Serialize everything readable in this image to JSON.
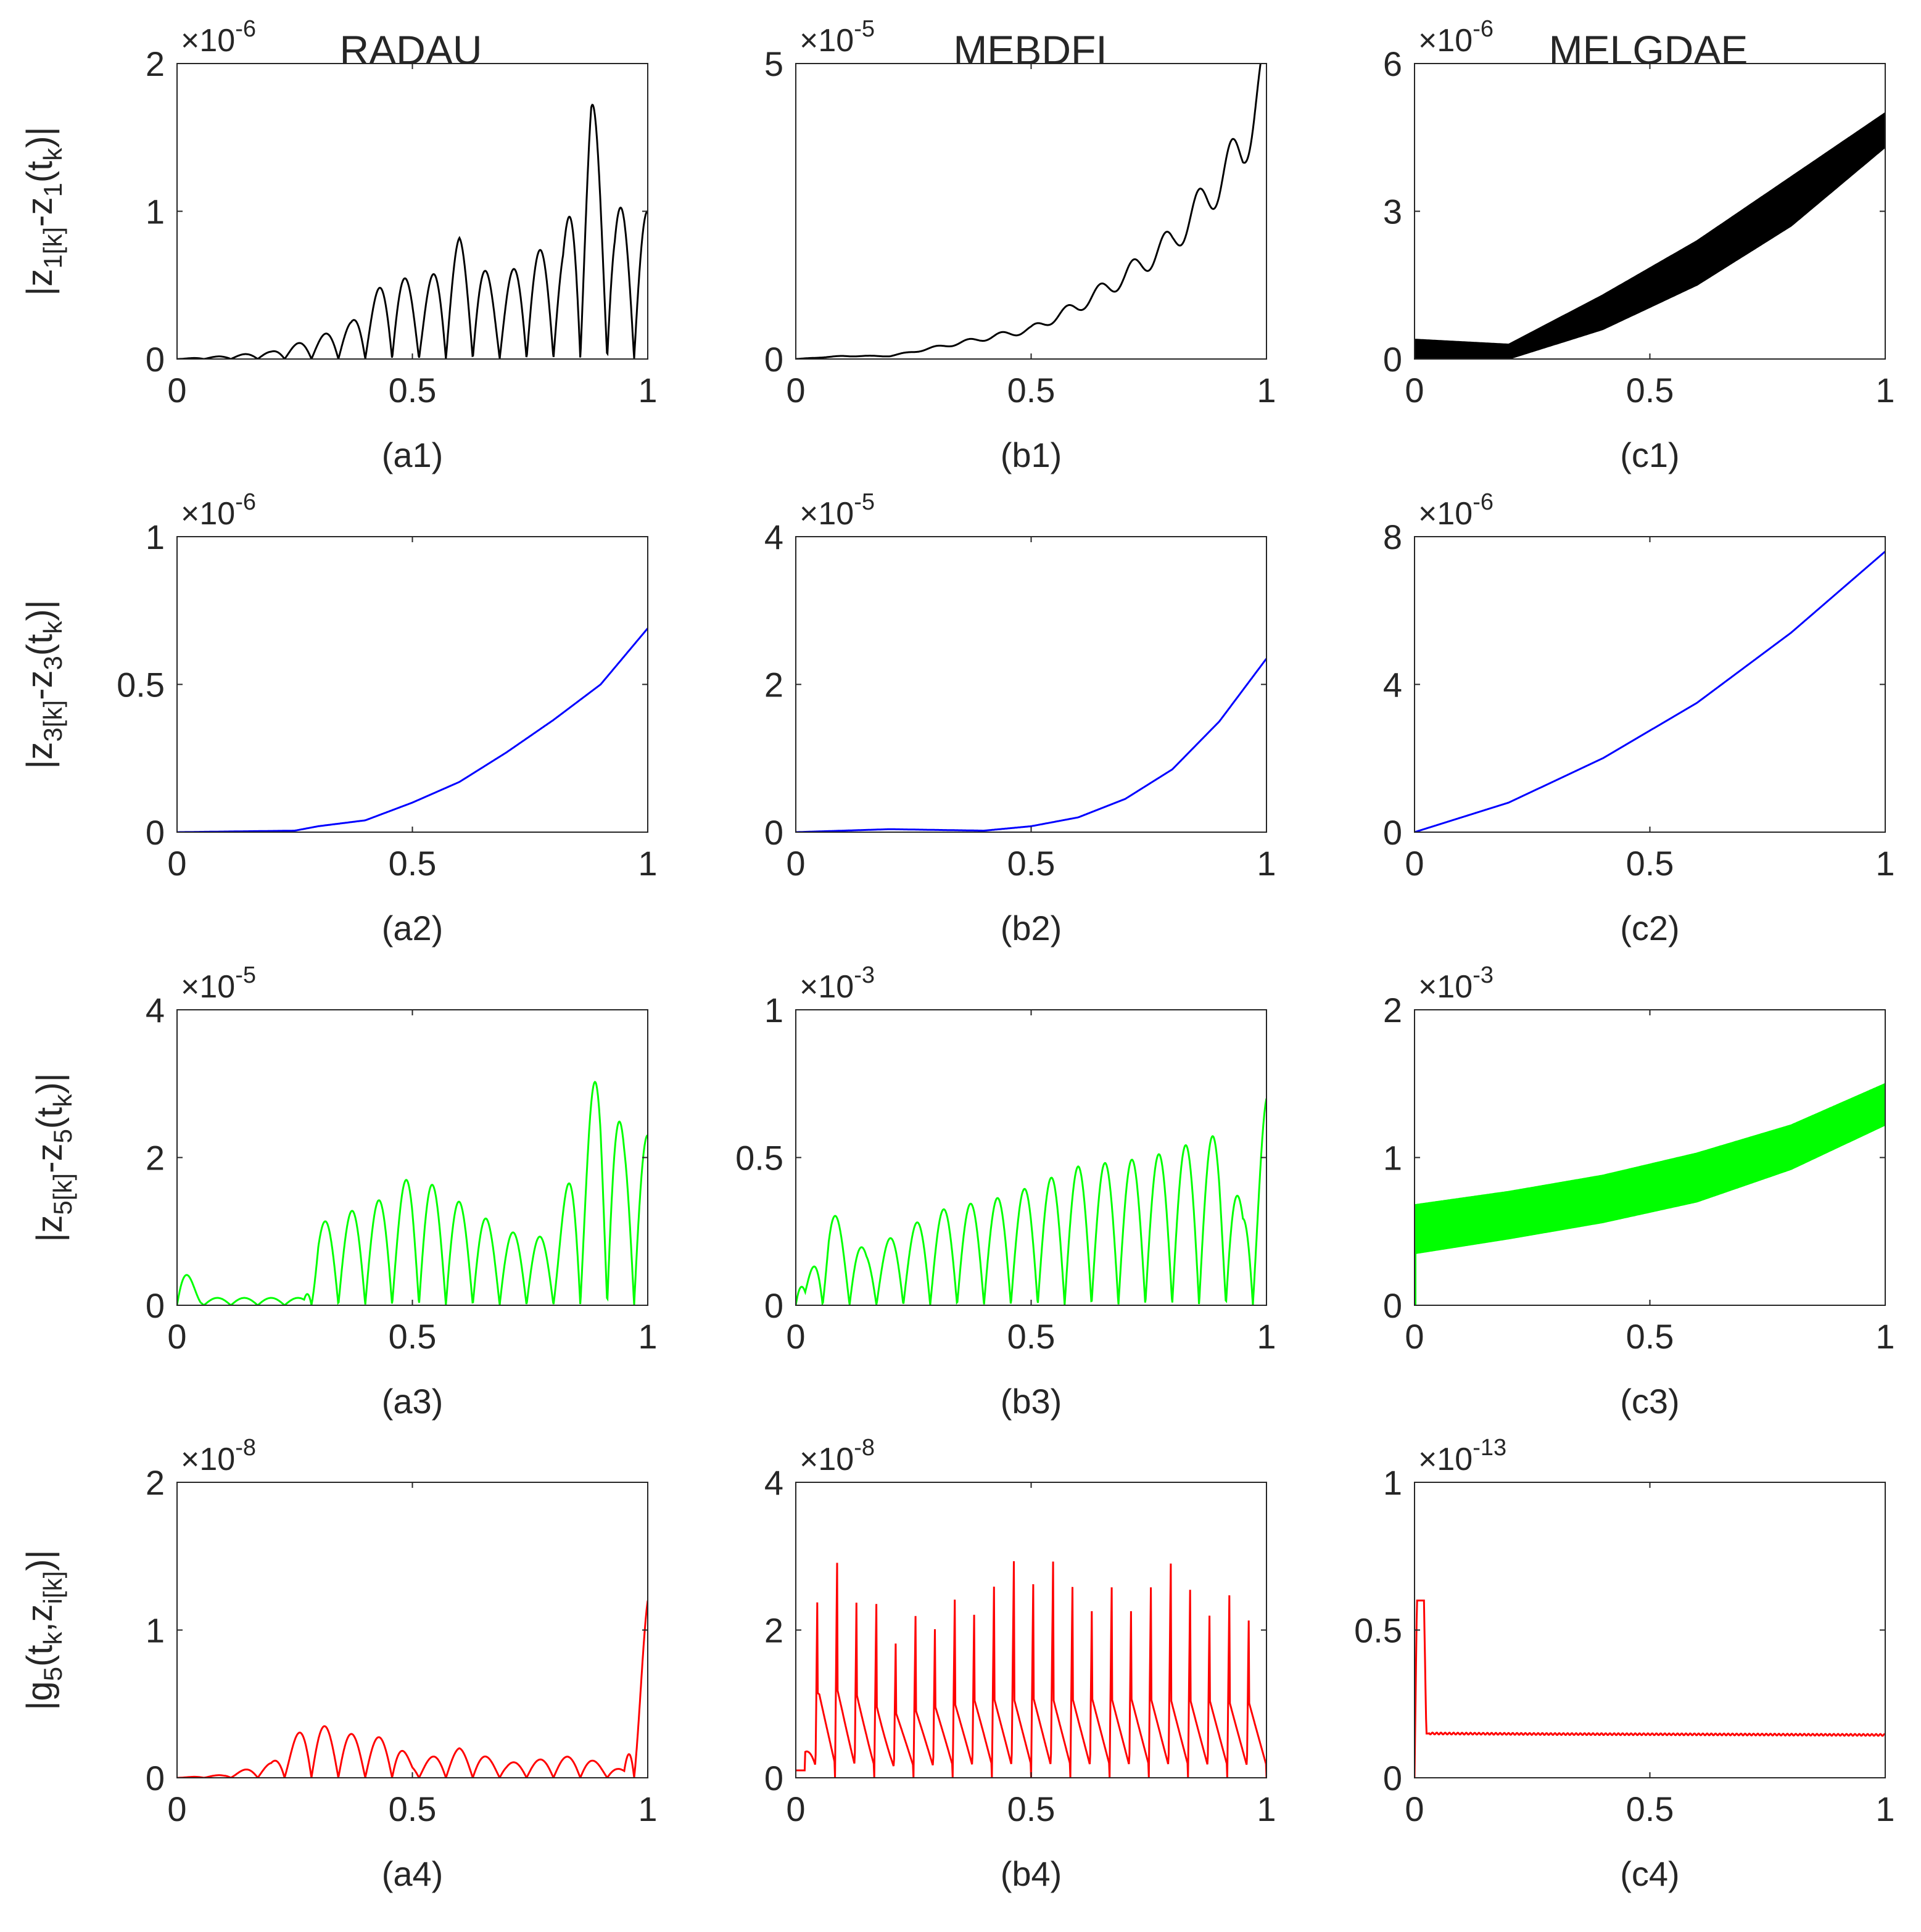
{
  "column_titles": [
    "RADAU",
    "MEBDFI",
    "MELGDAE"
  ],
  "row_ylabels": [
    {
      "main": "|z",
      "sub1": "1[k]",
      "mid": "-z",
      "sub2": "1",
      "tail": "(t",
      "sub3": "k",
      "end": ")|"
    },
    {
      "main": "|z",
      "sub1": "3[k]",
      "mid": "-z",
      "sub2": "3",
      "tail": "(t",
      "sub3": "k",
      "end": ")|"
    },
    {
      "main": "|z",
      "sub1": "5[k]",
      "mid": "-z",
      "sub2": "5",
      "tail": "(t",
      "sub3": "k",
      "end": ")|"
    },
    {
      "main": "|g",
      "sub1": "5",
      "mid": "(t",
      "sub2": "k",
      "tail": ",z",
      "sub3": "i[k]",
      "end": ")|"
    }
  ],
  "colors": {
    "row1": "#000000",
    "row2": "#0000ff",
    "row3": "#00ff00",
    "row4": "#ff0000",
    "axis": "#262626"
  },
  "chart_data": [
    {
      "id": "a1",
      "type": "line",
      "caption": "(a1)",
      "multiplier": "-6",
      "xlim": [
        0,
        1
      ],
      "ylim": [
        0,
        2
      ],
      "xticks": [
        "0",
        "0.5",
        "1"
      ],
      "yticks": [
        "0",
        "1",
        "2"
      ],
      "color": "#000000",
      "style": "oscillating",
      "x": [
        0,
        0.1,
        0.2,
        0.3,
        0.37,
        0.46,
        0.52,
        0.6,
        0.68,
        0.75,
        0.82,
        0.88,
        0.93,
        1.0
      ],
      "y": [
        0,
        0.02,
        0.05,
        0.15,
        0.25,
        0.6,
        0.47,
        0.82,
        0.5,
        0.72,
        0.78,
        1.78,
        1.03,
        1.0
      ]
    },
    {
      "id": "b1",
      "type": "line",
      "caption": "(b1)",
      "multiplier": "-5",
      "xlim": [
        0,
        1
      ],
      "ylim": [
        0,
        5
      ],
      "xticks": [
        "0",
        "0.5",
        "1"
      ],
      "yticks": [
        "0",
        "5"
      ],
      "color": "#000000",
      "style": "wavy",
      "x": [
        0,
        0.1,
        0.2,
        0.3,
        0.4,
        0.5,
        0.6,
        0.7,
        0.8,
        0.9,
        0.95,
        1.0
      ],
      "y": [
        0,
        0.05,
        0.05,
        0.2,
        0.35,
        0.5,
        0.9,
        1.4,
        2.0,
        3.0,
        3.6,
        4.9
      ]
    },
    {
      "id": "c1",
      "type": "area",
      "caption": "(c1)",
      "multiplier": "-6",
      "xlim": [
        0,
        1
      ],
      "ylim": [
        0,
        6
      ],
      "xticks": [
        "0",
        "0.5",
        "1"
      ],
      "yticks": [
        "0",
        "3",
        "6"
      ],
      "color": "#000000",
      "style": "band",
      "x": [
        0,
        0.2,
        0.4,
        0.6,
        0.8,
        1.0
      ],
      "upper": [
        0.4,
        0.3,
        1.3,
        2.4,
        3.7,
        5.0
      ],
      "lower": [
        0,
        0.0,
        0.6,
        1.5,
        2.7,
        4.3
      ]
    },
    {
      "id": "a2",
      "type": "line",
      "caption": "(a2)",
      "multiplier": "-6",
      "xlim": [
        0,
        1
      ],
      "ylim": [
        0,
        1
      ],
      "xticks": [
        "0",
        "0.5",
        "1"
      ],
      "yticks": [
        "0",
        "0.5",
        "1"
      ],
      "color": "#0000ff",
      "style": "smooth",
      "x": [
        0,
        0.25,
        0.3,
        0.4,
        0.5,
        0.6,
        0.7,
        0.8,
        0.9,
        1.0
      ],
      "y": [
        0,
        0.005,
        0.02,
        0.04,
        0.1,
        0.17,
        0.27,
        0.38,
        0.5,
        0.69
      ]
    },
    {
      "id": "b2",
      "type": "line",
      "caption": "(b2)",
      "multiplier": "-5",
      "xlim": [
        0,
        1
      ],
      "ylim": [
        0,
        4
      ],
      "xticks": [
        "0",
        "0.5",
        "1"
      ],
      "yticks": [
        "0",
        "2",
        "4"
      ],
      "color": "#0000ff",
      "style": "smooth",
      "x": [
        0,
        0.2,
        0.4,
        0.5,
        0.6,
        0.7,
        0.8,
        0.9,
        1.0
      ],
      "y": [
        0,
        0.04,
        0.02,
        0.08,
        0.2,
        0.45,
        0.85,
        1.5,
        2.35
      ]
    },
    {
      "id": "c2",
      "type": "line",
      "caption": "(c2)",
      "multiplier": "-6",
      "xlim": [
        0,
        1
      ],
      "ylim": [
        0,
        8
      ],
      "xticks": [
        "0",
        "0.5",
        "1"
      ],
      "yticks": [
        "0",
        "4",
        "8"
      ],
      "color": "#0000ff",
      "style": "smooth",
      "x": [
        0,
        0.2,
        0.4,
        0.6,
        0.8,
        1.0
      ],
      "y": [
        0,
        0.8,
        2.0,
        3.5,
        5.4,
        7.6
      ]
    },
    {
      "id": "a3",
      "type": "line",
      "caption": "(a3)",
      "multiplier": "-5",
      "xlim": [
        0,
        1
      ],
      "ylim": [
        0,
        4
      ],
      "xticks": [
        "0",
        "0.5",
        "1"
      ],
      "yticks": [
        "0",
        "2",
        "4"
      ],
      "color": "#00ff00",
      "style": "oscillating",
      "x": [
        0,
        0.05,
        0.15,
        0.27,
        0.3,
        0.46,
        0.5,
        0.6,
        0.7,
        0.8,
        0.9,
        0.95,
        1.0
      ],
      "y": [
        0.7,
        0.1,
        0.1,
        0.1,
        1.1,
        1.5,
        1.8,
        1.4,
        1.0,
        0.9,
        3.35,
        2.3,
        2.3
      ]
    },
    {
      "id": "b3",
      "type": "line",
      "caption": "(b3)",
      "multiplier": "-3",
      "xlim": [
        0,
        1
      ],
      "ylim": [
        0,
        1
      ],
      "xticks": [
        "0",
        "0.5",
        "1"
      ],
      "yticks": [
        "0",
        "0.5",
        "1"
      ],
      "color": "#00ff00",
      "style": "oscillating",
      "x": [
        0,
        0.02,
        0.07,
        0.15,
        0.3,
        0.45,
        0.6,
        0.75,
        0.9,
        0.95,
        1.0
      ],
      "y": [
        0.18,
        0.05,
        0.33,
        0.18,
        0.32,
        0.37,
        0.47,
        0.5,
        0.58,
        0.32,
        0.7
      ]
    },
    {
      "id": "c3",
      "type": "area",
      "caption": "(c3)",
      "multiplier": "-3",
      "xlim": [
        0,
        1
      ],
      "ylim": [
        0,
        2
      ],
      "xticks": [
        "0",
        "0.5",
        "1"
      ],
      "yticks": [
        "0",
        "1",
        "2"
      ],
      "color": "#00ff00",
      "style": "band",
      "x": [
        0,
        0.2,
        0.4,
        0.6,
        0.8,
        1.0
      ],
      "upper": [
        0.68,
        0.77,
        0.88,
        1.03,
        1.22,
        1.5
      ],
      "lower": [
        0.35,
        0.45,
        0.56,
        0.7,
        0.92,
        1.22
      ]
    },
    {
      "id": "a4",
      "type": "line",
      "caption": "(a4)",
      "multiplier": "-8",
      "xlim": [
        0,
        1
      ],
      "ylim": [
        0,
        2
      ],
      "xticks": [
        "0",
        "0.5",
        "1"
      ],
      "yticks": [
        "0",
        "1",
        "2"
      ],
      "color": "#ff0000",
      "style": "oscillating",
      "x": [
        0,
        0.1,
        0.2,
        0.28,
        0.4,
        0.46,
        0.5,
        0.6,
        0.7,
        0.85,
        0.95,
        1.0
      ],
      "y": [
        0,
        0.02,
        0.1,
        0.38,
        0.27,
        0.28,
        0.1,
        0.2,
        0.1,
        0.15,
        0.05,
        1.2
      ]
    },
    {
      "id": "b4",
      "type": "line",
      "caption": "(b4)",
      "multiplier": "-8",
      "xlim": [
        0,
        1
      ],
      "ylim": [
        0,
        4
      ],
      "xticks": [
        "0",
        "0.5",
        "1"
      ],
      "yticks": [
        "0",
        "2",
        "4"
      ],
      "color": "#ff0000",
      "style": "spiky",
      "x": [
        0,
        0.05,
        0.1,
        0.15,
        0.2,
        0.3,
        0.4,
        0.5,
        0.6,
        0.7,
        0.8,
        0.9,
        1.0
      ],
      "y": [
        0,
        3.35,
        3.25,
        2.9,
        2.3,
        2.6,
        2.9,
        2.95,
        2.9,
        2.9,
        2.9,
        2.8,
        2.7
      ]
    },
    {
      "id": "c4",
      "type": "line",
      "caption": "(c4)",
      "multiplier": "-13",
      "xlim": [
        0,
        1
      ],
      "ylim": [
        0,
        1
      ],
      "xticks": [
        "0",
        "0.5",
        "1"
      ],
      "yticks": [
        "0",
        "0.5",
        "1"
      ],
      "color": "#ff0000",
      "style": "flat",
      "x": [
        0,
        0.005,
        0.02,
        0.025,
        0.3,
        0.6,
        1.0
      ],
      "y": [
        0,
        0.6,
        0.6,
        0.15,
        0.148,
        0.147,
        0.145
      ]
    }
  ]
}
